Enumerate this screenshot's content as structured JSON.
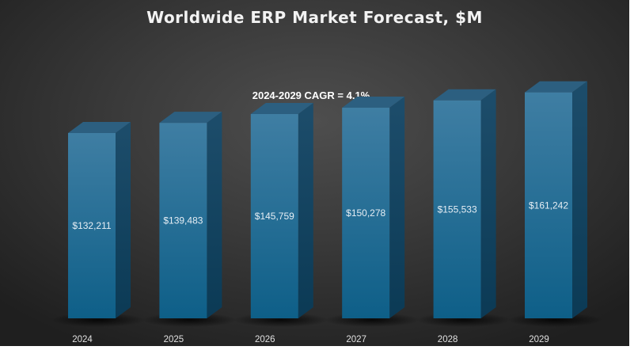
{
  "chart_data": {
    "type": "bar",
    "title": "Worldwide ERP Market Forecast, $M",
    "annotation": "2024-2029 CAGR = 4.1%",
    "categories": [
      "2024",
      "2025",
      "2026",
      "2027",
      "2028",
      "2029"
    ],
    "values": [
      132211,
      139483,
      145759,
      150278,
      155533,
      161242
    ],
    "data_labels": [
      "$132,211",
      "$139,483",
      "$145,759",
      "$150,278",
      "$155,533",
      "$161,242"
    ],
    "xlabel": "",
    "ylabel": "",
    "ylim": [
      0,
      180000
    ],
    "grid": false,
    "colors": {
      "front_top": "#3f7ea3",
      "front_bottom": "#0e5f88",
      "side": "#0d3f5c",
      "top": "#2c5f80"
    }
  }
}
